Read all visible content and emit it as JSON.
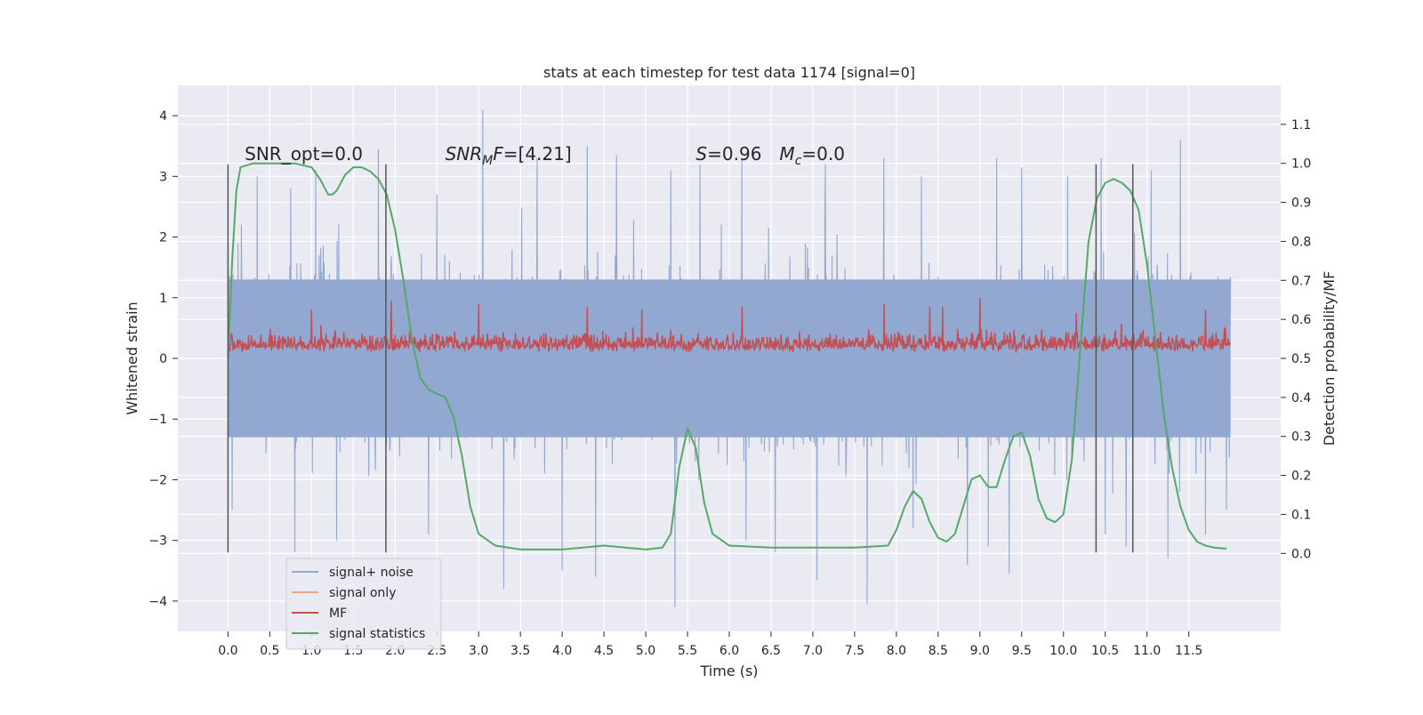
{
  "chart_data": {
    "type": "line",
    "title": "stats at each timestep for test data 1174 [signal=0]",
    "xlabel": "Time (s)",
    "ylabel": "Whitened strain",
    "y2label": "Detection probability/MF",
    "xlim": [
      -0.6,
      12.6
    ],
    "ylim": [
      -4.5,
      4.5
    ],
    "y2lim": [
      -0.2,
      1.2
    ],
    "xticks": [
      0.0,
      0.5,
      1.0,
      1.5,
      2.0,
      2.5,
      3.0,
      3.5,
      4.0,
      4.5,
      5.0,
      5.5,
      6.0,
      6.5,
      7.0,
      7.5,
      8.0,
      8.5,
      9.0,
      9.5,
      10.0,
      10.5,
      11.0,
      11.5
    ],
    "xtick_labels": [
      "0.0",
      "0.5",
      "1.0",
      "1.5",
      "2.0",
      "2.5",
      "3.0",
      "3.5",
      "4.0",
      "4.5",
      "5.0",
      "5.5",
      "6.0",
      "6.5",
      "7.0",
      "7.5",
      "8.0",
      "8.5",
      "9.0",
      "9.5",
      "10.0",
      "10.5",
      "11.0",
      "11.5"
    ],
    "yticks": [
      -4,
      -3,
      -2,
      -1,
      0,
      1,
      2,
      3,
      4
    ],
    "ytick_labels": [
      "−4",
      "−3",
      "−2",
      "−1",
      "0",
      "1",
      "2",
      "3",
      "4"
    ],
    "y2ticks": [
      0.0,
      0.1,
      0.2,
      0.3,
      0.4,
      0.5,
      0.6,
      0.7,
      0.8,
      0.9,
      1.0,
      1.1
    ],
    "y2tick_labels": [
      "0.0",
      "0.1",
      "0.2",
      "0.3",
      "0.4",
      "0.5",
      "0.6",
      "0.7",
      "0.8",
      "0.9",
      "1.0",
      "1.1"
    ],
    "grid": true,
    "legend_position": "lower-left",
    "annotations": [
      {
        "text": "SNR_opt=0.0",
        "x": 0.2
      },
      {
        "text": "SNR_MF=[4.21]",
        "x": 2.6
      },
      {
        "text": "S=0.96   M_c=0.0",
        "x": 5.6
      }
    ],
    "vlines": [
      0.0,
      1.89,
      10.39,
      10.83
    ],
    "vline_range": [
      -3.2,
      3.2
    ],
    "series": [
      {
        "name": "signal+ noise",
        "color": "#92a8d1",
        "axis": "left",
        "x_range": [
          0.0,
          12.0
        ],
        "band_upper": 1.3,
        "band_lower": -1.3,
        "spikes_max": [
          [
            0.35,
            3.0
          ],
          [
            0.75,
            2.8
          ],
          [
            1.05,
            3.1
          ],
          [
            1.3,
            3.7
          ],
          [
            1.8,
            3.45
          ],
          [
            2.5,
            2.7
          ],
          [
            3.05,
            4.1
          ],
          [
            3.3,
            3.0
          ],
          [
            3.7,
            3.3
          ],
          [
            4.3,
            3.5
          ],
          [
            4.65,
            3.35
          ],
          [
            5.3,
            3.1
          ],
          [
            5.65,
            3.2
          ],
          [
            6.15,
            3.3
          ],
          [
            6.55,
            3.15
          ],
          [
            7.15,
            3.2
          ],
          [
            7.85,
            3.3
          ],
          [
            8.3,
            3.0
          ],
          [
            9.2,
            3.3
          ],
          [
            9.5,
            3.15
          ],
          [
            10.05,
            3.0
          ],
          [
            10.45,
            3.3
          ],
          [
            11.05,
            3.1
          ],
          [
            11.4,
            3.6
          ],
          [
            11.95,
            2.6
          ]
        ],
        "spikes_min": [
          [
            0.05,
            -2.5
          ],
          [
            0.8,
            -3.2
          ],
          [
            1.3,
            -3.0
          ],
          [
            2.4,
            -2.9
          ],
          [
            3.3,
            -3.8
          ],
          [
            4.0,
            -3.5
          ],
          [
            4.4,
            -3.6
          ],
          [
            5.35,
            -4.1
          ],
          [
            6.2,
            -3.0
          ],
          [
            6.55,
            -3.2
          ],
          [
            7.05,
            -3.65
          ],
          [
            7.65,
            -4.05
          ],
          [
            8.2,
            -2.8
          ],
          [
            8.85,
            -3.4
          ],
          [
            9.1,
            -3.1
          ],
          [
            9.35,
            -3.55
          ],
          [
            10.5,
            -2.9
          ],
          [
            10.75,
            -3.1
          ],
          [
            11.25,
            -3.3
          ],
          [
            11.7,
            -2.9
          ],
          [
            11.95,
            -2.5
          ]
        ]
      },
      {
        "name": "signal only",
        "color": "#e8a582",
        "axis": "left",
        "x": [],
        "y": []
      },
      {
        "name": "MF",
        "color": "#c44e52",
        "axis": "left",
        "x_range": [
          0.0,
          12.0
        ],
        "baseline": 0.1,
        "peaks": [
          [
            1.0,
            0.8
          ],
          [
            1.95,
            0.95
          ],
          [
            3.0,
            0.9
          ],
          [
            4.3,
            0.85
          ],
          [
            4.95,
            0.8
          ],
          [
            6.15,
            0.85
          ],
          [
            7.85,
            0.9
          ],
          [
            8.4,
            0.85
          ],
          [
            8.55,
            0.85
          ],
          [
            9.0,
            1.0
          ],
          [
            10.15,
            0.75
          ],
          [
            11.7,
            0.8
          ]
        ]
      },
      {
        "name": "signal statistics",
        "color": "#55a868",
        "axis": "right",
        "x": [
          0.0,
          0.05,
          0.1,
          0.15,
          0.3,
          0.5,
          0.8,
          1.0,
          1.1,
          1.2,
          1.25,
          1.3,
          1.4,
          1.5,
          1.6,
          1.7,
          1.8,
          1.9,
          2.0,
          2.1,
          2.2,
          2.3,
          2.4,
          2.5,
          2.6,
          2.7,
          2.8,
          2.9,
          3.0,
          3.2,
          3.5,
          4.0,
          4.5,
          5.0,
          5.2,
          5.3,
          5.4,
          5.5,
          5.6,
          5.7,
          5.8,
          6.0,
          6.5,
          7.0,
          7.5,
          7.9,
          8.0,
          8.1,
          8.2,
          8.3,
          8.4,
          8.5,
          8.6,
          8.7,
          8.8,
          8.9,
          9.0,
          9.1,
          9.2,
          9.3,
          9.4,
          9.5,
          9.6,
          9.7,
          9.8,
          9.9,
          10.0,
          10.1,
          10.2,
          10.3,
          10.4,
          10.5,
          10.6,
          10.7,
          10.8,
          10.9,
          11.0,
          11.1,
          11.2,
          11.3,
          11.4,
          11.5,
          11.6,
          11.7,
          11.8,
          11.95
        ],
        "y": [
          0.5,
          0.75,
          0.93,
          0.99,
          1.0,
          1.0,
          1.0,
          0.99,
          0.96,
          0.92,
          0.92,
          0.93,
          0.97,
          0.99,
          0.99,
          0.98,
          0.96,
          0.92,
          0.83,
          0.7,
          0.55,
          0.45,
          0.42,
          0.41,
          0.4,
          0.35,
          0.25,
          0.12,
          0.05,
          0.02,
          0.01,
          0.01,
          0.02,
          0.01,
          0.015,
          0.05,
          0.22,
          0.32,
          0.27,
          0.13,
          0.05,
          0.02,
          0.015,
          0.015,
          0.015,
          0.02,
          0.06,
          0.12,
          0.16,
          0.14,
          0.08,
          0.04,
          0.03,
          0.05,
          0.12,
          0.19,
          0.2,
          0.17,
          0.17,
          0.24,
          0.3,
          0.31,
          0.25,
          0.14,
          0.09,
          0.08,
          0.1,
          0.24,
          0.52,
          0.8,
          0.91,
          0.95,
          0.96,
          0.95,
          0.93,
          0.88,
          0.74,
          0.55,
          0.36,
          0.22,
          0.12,
          0.06,
          0.03,
          0.02,
          0.015,
          0.012
        ]
      }
    ]
  }
}
